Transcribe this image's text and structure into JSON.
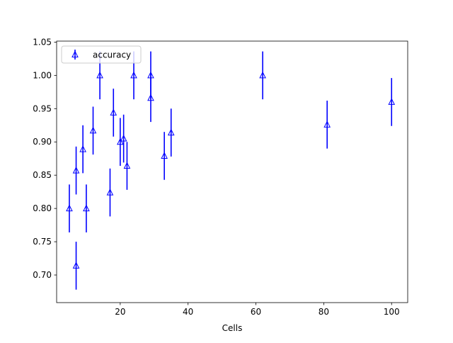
{
  "chart_data": {
    "type": "scatter",
    "title": "",
    "xlabel": "Cells",
    "ylabel": "",
    "xlim": [
      1.25,
      104.75
    ],
    "ylim": [
      0.6585,
      1.0515
    ],
    "xticks": [
      20,
      40,
      60,
      80,
      100
    ],
    "xtick_labels": [
      "20",
      "40",
      "60",
      "80",
      "100"
    ],
    "yticks": [
      0.7,
      0.75,
      0.8,
      0.85,
      0.9,
      0.95,
      1.0,
      1.05
    ],
    "ytick_labels": [
      "0.70",
      "0.75",
      "0.80",
      "0.85",
      "0.90",
      "0.95",
      "1.00",
      "1.05"
    ],
    "grid": false,
    "legend_position": "top-left",
    "series": [
      {
        "name": "accuracy",
        "color": "#0000ff",
        "marker": "triangle-open",
        "points": [
          {
            "x": 5,
            "y": 0.8,
            "err": 0.036
          },
          {
            "x": 7,
            "y": 0.857,
            "err": 0.036
          },
          {
            "x": 7,
            "y": 0.714,
            "err": 0.036
          },
          {
            "x": 9,
            "y": 0.889,
            "err": 0.036
          },
          {
            "x": 10,
            "y": 0.8,
            "err": 0.036
          },
          {
            "x": 12,
            "y": 0.917,
            "err": 0.036
          },
          {
            "x": 14,
            "y": 1.0,
            "err": 0.036
          },
          {
            "x": 17,
            "y": 0.824,
            "err": 0.036
          },
          {
            "x": 18,
            "y": 0.944,
            "err": 0.036
          },
          {
            "x": 20,
            "y": 0.9,
            "err": 0.036
          },
          {
            "x": 21,
            "y": 0.905,
            "err": 0.036
          },
          {
            "x": 22,
            "y": 0.864,
            "err": 0.036
          },
          {
            "x": 24,
            "y": 1.0,
            "err": 0.036
          },
          {
            "x": 29,
            "y": 1.0,
            "err": 0.036
          },
          {
            "x": 29,
            "y": 0.966,
            "err": 0.036
          },
          {
            "x": 33,
            "y": 0.879,
            "err": 0.036
          },
          {
            "x": 35,
            "y": 0.914,
            "err": 0.036
          },
          {
            "x": 62,
            "y": 1.0,
            "err": 0.036
          },
          {
            "x": 81,
            "y": 0.926,
            "err": 0.036
          },
          {
            "x": 100,
            "y": 0.96,
            "err": 0.036
          }
        ]
      }
    ]
  }
}
